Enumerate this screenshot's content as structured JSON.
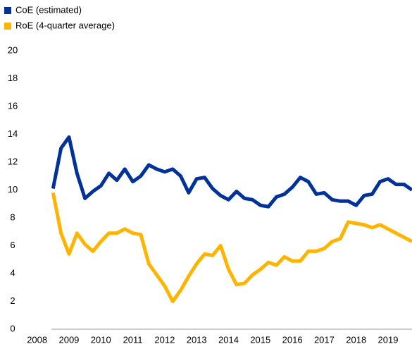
{
  "chart_data": {
    "type": "line",
    "x": [
      2008.5,
      2008.75,
      2009,
      2009.25,
      2009.5,
      2009.75,
      2010,
      2010.25,
      2010.5,
      2010.75,
      2011,
      2011.25,
      2011.5,
      2011.75,
      2012,
      2012.25,
      2012.5,
      2012.75,
      2013,
      2013.25,
      2013.5,
      2013.75,
      2014,
      2014.25,
      2014.5,
      2014.75,
      2015,
      2015.25,
      2015.5,
      2015.75,
      2016,
      2016.25,
      2016.5,
      2016.75,
      2017,
      2017.25,
      2017.5,
      2017.75,
      2018,
      2018.25,
      2018.5,
      2018.75,
      2019,
      2019.25,
      2019.5,
      2019.75
    ],
    "series": [
      {
        "name": "CoE (estimated)",
        "color": "#003299",
        "values": [
          10.1,
          13.0,
          13.8,
          11.2,
          9.4,
          9.9,
          10.3,
          11.2,
          10.7,
          11.5,
          10.6,
          11.0,
          11.8,
          11.5,
          11.3,
          11.5,
          11.0,
          9.8,
          10.8,
          10.9,
          10.1,
          9.6,
          9.3,
          9.9,
          9.4,
          9.3,
          8.9,
          8.8,
          9.5,
          9.7,
          10.2,
          10.9,
          10.6,
          9.7,
          9.8,
          9.3,
          9.2,
          9.2,
          8.9,
          9.6,
          9.7,
          10.6,
          10.8,
          10.4,
          10.4,
          10.0
        ]
      },
      {
        "name": "RoE (4-quarter average)",
        "color": "#ffb400",
        "values": [
          9.8,
          6.9,
          5.4,
          6.9,
          6.1,
          5.6,
          6.3,
          6.9,
          6.9,
          7.2,
          6.9,
          6.8,
          4.7,
          3.9,
          3.1,
          2.0,
          2.8,
          3.8,
          4.7,
          5.4,
          5.3,
          6.0,
          4.3,
          3.2,
          3.3,
          3.9,
          4.3,
          4.8,
          4.6,
          5.2,
          4.9,
          4.9,
          5.6,
          5.6,
          5.8,
          6.3,
          6.5,
          7.7,
          7.6,
          7.5,
          7.3,
          7.5,
          7.2,
          6.9,
          6.6,
          6.3
        ]
      }
    ],
    "xlim": [
      2007.5,
      2019.75
    ],
    "xticks": [
      2008,
      2009,
      2010,
      2011,
      2012,
      2013,
      2014,
      2015,
      2016,
      2017,
      2018,
      2019
    ],
    "ylim": [
      0,
      20
    ],
    "yticks": [
      0,
      2,
      4,
      6,
      8,
      10,
      12,
      14,
      16,
      18,
      20
    ],
    "legend": "top-left"
  }
}
